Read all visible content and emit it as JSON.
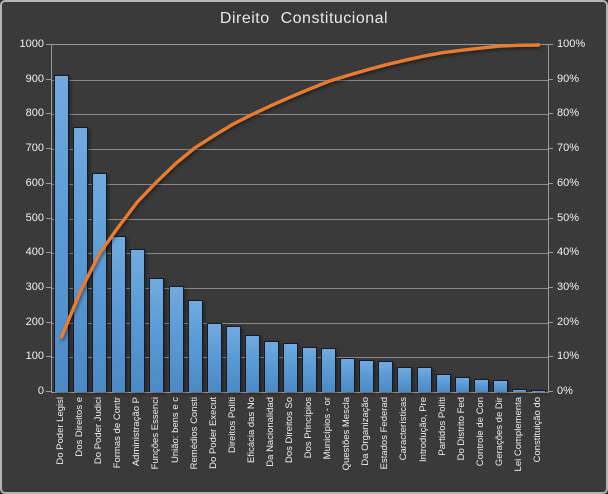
{
  "window": {
    "background": "#3a3a3a",
    "frame_border": "#b4b4b4",
    "text_color": "#f1f1f1"
  },
  "chart_data": {
    "type": "bar",
    "subtype": "pareto",
    "title": "Direito Constitucional",
    "legend": "none",
    "grid": true,
    "categories": [
      "Do Poder Legisl",
      "Dos Direitos e",
      "Do Poder Judici",
      "Formas de Contr",
      "Administração P",
      "Funções Essenci",
      "União: bens e c",
      "Remédios Consti",
      "Do Poder Execut",
      "Direitos Políti",
      "Eficácia das No",
      "Da Nacionalidad",
      "Dos Direitos So",
      "Dos Princípios",
      "Municípios - or",
      "Questões Mescla",
      "Da Organização",
      "Estados Federad",
      "Características",
      "Introdução, Pre",
      "Partidos Políti",
      "Do Distrito Fed",
      "Controle de Con",
      "Gerações de Dir",
      "Lei Complementa",
      "Constituição do"
    ],
    "series": [
      {
        "name": "question-count-bars",
        "type": "bar",
        "color": "#5b9bd5",
        "values": [
          915,
          765,
          630,
          450,
          413,
          330,
          306,
          264,
          200,
          190,
          163,
          147,
          142,
          130,
          128,
          97,
          93,
          90,
          73,
          72,
          53,
          42,
          37,
          36,
          8,
          7
        ]
      },
      {
        "name": "cumulative-percent-line",
        "type": "line",
        "color": "#e97c30",
        "axis": "right",
        "values": [
          15.8,
          29.1,
          40.0,
          47.7,
          54.9,
          60.6,
          65.9,
          70.4,
          73.9,
          77.2,
          80.0,
          82.6,
          85.0,
          87.3,
          89.5,
          91.2,
          92.8,
          94.3,
          95.6,
          96.8,
          97.8,
          98.5,
          99.1,
          99.7,
          99.9,
          100.0
        ]
      }
    ],
    "left_axis": {
      "min": 0,
      "max": 1000,
      "step": 100,
      "ticks": [
        "1000",
        "900",
        "800",
        "700",
        "600",
        "500",
        "400",
        "300",
        "200",
        "100",
        "0"
      ]
    },
    "right_axis": {
      "min": 0,
      "max": 100,
      "step": 10,
      "ticks": [
        "100%",
        "90%",
        "80%",
        "70%",
        "60%",
        "50%",
        "40%",
        "30%",
        "20%",
        "10%",
        "0%"
      ]
    }
  }
}
